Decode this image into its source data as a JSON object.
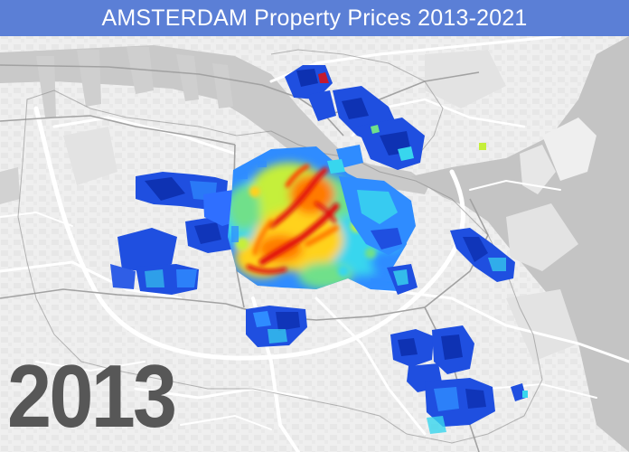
{
  "header": {
    "title": "AMSTERDAM Property Prices 2013-2021"
  },
  "map": {
    "year": "2013",
    "basemap": {
      "land": "#efefef",
      "water": "#c6c6c6",
      "roads": "#ffffff",
      "rail": "#9e9e9e",
      "blocks": "#e2e2e2"
    },
    "price_scale": [
      "#0a2ba8",
      "#1f4fe0",
      "#2f8cff",
      "#38d6ee",
      "#6fe08a",
      "#c5ef3a",
      "#ffd21e",
      "#ff7a00",
      "#e01010"
    ]
  }
}
